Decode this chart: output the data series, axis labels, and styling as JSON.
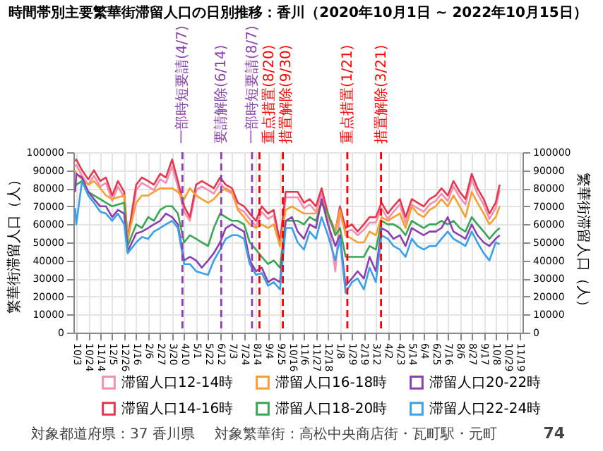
{
  "chart_data": {
    "type": "line",
    "title": "時間帯別主要繁華街滞留人口の日別推移：香川（2020年10月1日 ~ 2022年10月15日）",
    "ylabel": "繁華街滞留人口（人）",
    "y2label": "繁華街滞留人口（人）",
    "x": [
      "2020-10-01",
      "2020-10-03",
      "2020-10-13",
      "2020-10-24",
      "2020-11-03",
      "2020-11-14",
      "2020-11-24",
      "2020-12-05",
      "2020-12-15",
      "2020-12-26",
      "2021-01-01",
      "2021-01-16",
      "2021-01-26",
      "2021-02-06",
      "2021-02-16",
      "2021-02-27",
      "2021-03-09",
      "2021-03-20",
      "2021-03-30",
      "2021-04-10",
      "2021-04-20",
      "2021-05-01",
      "2021-05-11",
      "2021-05-22",
      "2021-06-01",
      "2021-06-12",
      "2021-06-22",
      "2021-07-03",
      "2021-07-13",
      "2021-07-24",
      "2021-08-03",
      "2021-08-14",
      "2021-08-24",
      "2021-09-04",
      "2021-09-14",
      "2021-09-25",
      "2021-10-05",
      "2021-10-16",
      "2021-10-26",
      "2021-11-06",
      "2021-11-16",
      "2021-11-27",
      "2021-12-07",
      "2021-12-18",
      "2021-12-31",
      "2022-01-08",
      "2022-01-18",
      "2022-01-29",
      "2022-02-08",
      "2022-02-19",
      "2022-03-01",
      "2022-03-12",
      "2022-03-22",
      "2022-04-02",
      "2022-04-12",
      "2022-04-23",
      "2022-05-03",
      "2022-05-14",
      "2022-05-24",
      "2022-06-04",
      "2022-06-14",
      "2022-06-25",
      "2022-07-05",
      "2022-07-16",
      "2022-07-26",
      "2022-08-06",
      "2022-08-16",
      "2022-08-27",
      "2022-09-06",
      "2022-09-17",
      "2022-09-27",
      "2022-10-08",
      "2022-10-15"
    ],
    "series": [
      {
        "name": "滞留人口12-14時",
        "color": "#f48fb1",
        "values": [
          92000,
          93000,
          87000,
          82000,
          87000,
          81000,
          83000,
          73000,
          81000,
          75000,
          50000,
          79000,
          83000,
          81000,
          79000,
          85000,
          83000,
          92000,
          81000,
          67000,
          62000,
          79000,
          81000,
          79000,
          77000,
          83000,
          79000,
          77000,
          69000,
          67000,
          63000,
          59000,
          67000,
          63000,
          65000,
          48000,
          75000,
          75000,
          75000,
          69000,
          71000,
          67000,
          77000,
          63000,
          34000,
          67000,
          56000,
          57000,
          54000,
          57000,
          61000,
          61000,
          69000,
          63000,
          67000,
          71000,
          61000,
          71000,
          69000,
          67000,
          71000,
          73000,
          77000,
          73000,
          81000,
          75000,
          71000,
          85000,
          77000,
          71000,
          63000,
          69000,
          79000
        ]
      },
      {
        "name": "滞留人口14-16時",
        "color": "#e8364f",
        "values": [
          95000,
          96000,
          90000,
          85000,
          90000,
          84000,
          86000,
          76000,
          84000,
          78000,
          52000,
          82000,
          86000,
          84000,
          82000,
          88000,
          86000,
          96000,
          84000,
          70000,
          64000,
          82000,
          84000,
          82000,
          80000,
          86000,
          82000,
          80000,
          72000,
          70000,
          66000,
          62000,
          70000,
          66000,
          68000,
          50000,
          78000,
          78000,
          78000,
          72000,
          74000,
          70000,
          80000,
          66000,
          56000,
          70000,
          58000,
          60000,
          56000,
          60000,
          64000,
          64000,
          72000,
          66000,
          70000,
          74000,
          64000,
          74000,
          72000,
          70000,
          74000,
          76000,
          80000,
          76000,
          84000,
          78000,
          74000,
          88000,
          80000,
          74000,
          66000,
          72000,
          82000
        ]
      },
      {
        "name": "滞留人口16-18時",
        "color": "#f5a030",
        "values": [
          90000,
          88000,
          85000,
          82000,
          84000,
          80000,
          76000,
          74000,
          75000,
          76000,
          52000,
          72000,
          76000,
          76000,
          78000,
          80000,
          80000,
          80000,
          78000,
          74000,
          80000,
          76000,
          74000,
          72000,
          74000,
          78000,
          80000,
          78000,
          68000,
          64000,
          60000,
          58000,
          60000,
          58000,
          60000,
          48000,
          68000,
          70000,
          68000,
          66000,
          66000,
          66000,
          72000,
          64000,
          56000,
          68000,
          54000,
          52000,
          50000,
          50000,
          56000,
          54000,
          64000,
          62000,
          64000,
          66000,
          58000,
          70000,
          66000,
          64000,
          68000,
          70000,
          74000,
          70000,
          76000,
          70000,
          64000,
          78000,
          72000,
          66000,
          60000,
          64000,
          70000
        ]
      },
      {
        "name": "滞留人口18-20時",
        "color": "#3aa655",
        "values": [
          82000,
          82000,
          84000,
          78000,
          76000,
          74000,
          72000,
          70000,
          71000,
          72000,
          48000,
          60000,
          58000,
          64000,
          62000,
          68000,
          70000,
          70000,
          66000,
          50000,
          54000,
          52000,
          50000,
          48000,
          58000,
          66000,
          64000,
          62000,
          62000,
          60000,
          50000,
          46000,
          42000,
          38000,
          40000,
          36000,
          62000,
          62000,
          62000,
          60000,
          64000,
          62000,
          72000,
          66000,
          54000,
          58000,
          42000,
          42000,
          42000,
          42000,
          48000,
          46000,
          62000,
          60000,
          60000,
          58000,
          54000,
          62000,
          60000,
          58000,
          60000,
          60000,
          62000,
          60000,
          62000,
          58000,
          56000,
          64000,
          60000,
          56000,
          52000,
          56000,
          58000
        ]
      },
      {
        "name": "滞留人口20-22時",
        "color": "#8b3fb0",
        "values": [
          78000,
          88000,
          86000,
          78000,
          74000,
          70000,
          70000,
          64000,
          68000,
          66000,
          45000,
          55000,
          56000,
          58000,
          60000,
          62000,
          66000,
          64000,
          60000,
          40000,
          42000,
          40000,
          36000,
          40000,
          44000,
          50000,
          58000,
          60000,
          58000,
          56000,
          40000,
          34000,
          36000,
          28000,
          30000,
          28000,
          62000,
          64000,
          56000,
          52000,
          60000,
          58000,
          74000,
          60000,
          48000,
          54000,
          26000,
          30000,
          34000,
          30000,
          42000,
          34000,
          58000,
          56000,
          52000,
          54000,
          48000,
          58000,
          56000,
          54000,
          56000,
          56000,
          58000,
          64000,
          56000,
          54000,
          52000,
          60000,
          54000,
          50000,
          48000,
          52000,
          54000
        ]
      },
      {
        "name": "滞留人口22-24時",
        "color": "#3aa0e8",
        "values": [
          69000,
          60000,
          84000,
          76000,
          72000,
          67000,
          66000,
          62000,
          66000,
          60000,
          44000,
          50000,
          53000,
          52000,
          56000,
          58000,
          60000,
          62000,
          58000,
          38000,
          38000,
          34000,
          33000,
          32000,
          40000,
          46000,
          52000,
          54000,
          54000,
          52000,
          38000,
          32000,
          33000,
          26000,
          28000,
          24000,
          58000,
          58000,
          50000,
          46000,
          56000,
          52000,
          64000,
          54000,
          40000,
          52000,
          22000,
          28000,
          30000,
          24000,
          36000,
          28000,
          54000,
          52000,
          48000,
          46000,
          42000,
          52000,
          48000,
          46000,
          48000,
          48000,
          52000,
          56000,
          52000,
          50000,
          48000,
          56000,
          50000,
          44000,
          40000,
          50000,
          49000
        ]
      }
    ],
    "xlim": [
      "2020-09-28",
      "2022-11-24"
    ],
    "xticks": [
      {
        "value": "2020-10-03",
        "label": "10/3"
      },
      {
        "value": "2020-10-24",
        "label": "10/24"
      },
      {
        "value": "2020-11-14",
        "label": "11/14"
      },
      {
        "value": "2020-12-05",
        "label": "12/5"
      },
      {
        "value": "2020-12-26",
        "label": "12/26"
      },
      {
        "value": "2021-01-16",
        "label": "1/16"
      },
      {
        "value": "2021-02-06",
        "label": "2/6"
      },
      {
        "value": "2021-02-27",
        "label": "2/27"
      },
      {
        "value": "2021-03-20",
        "label": "3/20"
      },
      {
        "value": "2021-04-10",
        "label": "4/10"
      },
      {
        "value": "2021-05-01",
        "label": "5/1"
      },
      {
        "value": "2021-05-22",
        "label": "5/22"
      },
      {
        "value": "2021-06-12",
        "label": "6/12"
      },
      {
        "value": "2021-07-03",
        "label": "7/3"
      },
      {
        "value": "2021-07-24",
        "label": "7/24"
      },
      {
        "value": "2021-08-14",
        "label": "8/14"
      },
      {
        "value": "2021-09-04",
        "label": "9/4"
      },
      {
        "value": "2021-09-25",
        "label": "9/25"
      },
      {
        "value": "2021-10-16",
        "label": "10/16"
      },
      {
        "value": "2021-11-06",
        "label": "11/6"
      },
      {
        "value": "2021-11-27",
        "label": "11/27"
      },
      {
        "value": "2021-12-18",
        "label": "12/18"
      },
      {
        "value": "2022-01-08",
        "label": "1/8"
      },
      {
        "value": "2022-01-29",
        "label": "1/29"
      },
      {
        "value": "2022-02-19",
        "label": "2/19"
      },
      {
        "value": "2022-03-12",
        "label": "3/12"
      },
      {
        "value": "2022-04-02",
        "label": "4/2"
      },
      {
        "value": "2022-04-23",
        "label": "4/23"
      },
      {
        "value": "2022-05-14",
        "label": "5/14"
      },
      {
        "value": "2022-06-04",
        "label": "6/4"
      },
      {
        "value": "2022-06-25",
        "label": "6/25"
      },
      {
        "value": "2022-07-16",
        "label": "7/16"
      },
      {
        "value": "2022-08-06",
        "label": "8/6"
      },
      {
        "value": "2022-08-27",
        "label": "8/27"
      },
      {
        "value": "2022-09-17",
        "label": "9/17"
      },
      {
        "value": "2022-10-08",
        "label": "10/8"
      },
      {
        "value": "2022-10-29",
        "label": "10/29"
      },
      {
        "value": "2022-11-19",
        "label": "11/19"
      }
    ],
    "ylim": [
      0,
      100000
    ],
    "yticks": [
      0,
      10000,
      20000,
      30000,
      40000,
      50000,
      60000,
      70000,
      80000,
      90000,
      100000
    ],
    "y2lim": [
      0,
      100000
    ],
    "y2ticks": [
      0,
      10000,
      20000,
      30000,
      40000,
      50000,
      60000,
      70000,
      80000,
      90000,
      100000
    ],
    "ref_lines": [
      {
        "axis": "x",
        "value": "2021-04-07",
        "label": "一部時短要請(4/7)",
        "color": "#8b3fb0",
        "line_style": "dashed"
      },
      {
        "axis": "x",
        "value": "2021-06-14",
        "label": "要請解除(6/14)",
        "color": "#8b3fb0",
        "line_style": "dashed"
      },
      {
        "axis": "x",
        "value": "2021-08-07",
        "label": "一部時短要請(8/7)",
        "color": "#8b3fb0",
        "line_style": "dashed"
      },
      {
        "axis": "x",
        "value": "2021-08-20",
        "label": "重点措置(8/20)",
        "color": "#ff0000",
        "line_style": "dashed"
      },
      {
        "axis": "x",
        "value": "2021-09-30",
        "label": "措置解除(9/30)",
        "color": "#ff0000",
        "line_style": "dashed"
      },
      {
        "axis": "x",
        "value": "2022-01-21",
        "label": "重点措置(1/21)",
        "color": "#ff0000",
        "line_style": "dashed"
      },
      {
        "axis": "x",
        "value": "2022-03-21",
        "label": "措置解除(3/21)",
        "color": "#ff0000",
        "line_style": "dashed"
      }
    ],
    "annotations": [
      "対象都道府県：37 香川県",
      "対象繁華街：高松中央商店街・瓦町駅・元町",
      "74"
    ],
    "grid": true,
    "legend": "bottom"
  }
}
